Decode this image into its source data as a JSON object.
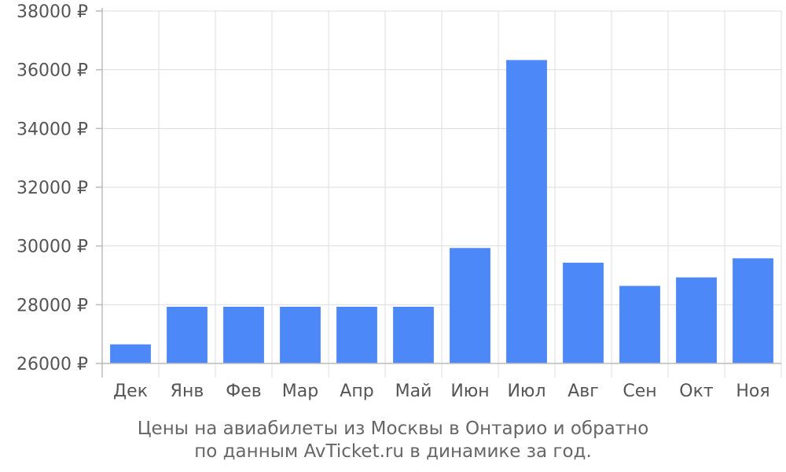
{
  "chart_data": {
    "type": "bar",
    "categories": [
      "Дек",
      "Янв",
      "Фев",
      "Мар",
      "Апр",
      "Май",
      "Июн",
      "Июл",
      "Авг",
      "Сен",
      "Окт",
      "Ноя"
    ],
    "values": [
      26650,
      27930,
      27930,
      27930,
      27930,
      27930,
      29930,
      36330,
      29430,
      28640,
      28930,
      29580
    ],
    "ylim": [
      26000,
      38000
    ],
    "yticks": [
      26000,
      28000,
      30000,
      32000,
      34000,
      36000,
      38000
    ],
    "ytick_labels": [
      "26000 ₽",
      "28000 ₽",
      "30000 ₽",
      "32000 ₽",
      "34000 ₽",
      "36000 ₽",
      "38000 ₽"
    ],
    "grid": true,
    "bar_color": "#4d88f9",
    "caption_lines": [
      "Цены на авиабилеты из Москвы в Онтарио и обратно",
      "по данным AvTicket.ru в динамике за год."
    ]
  }
}
